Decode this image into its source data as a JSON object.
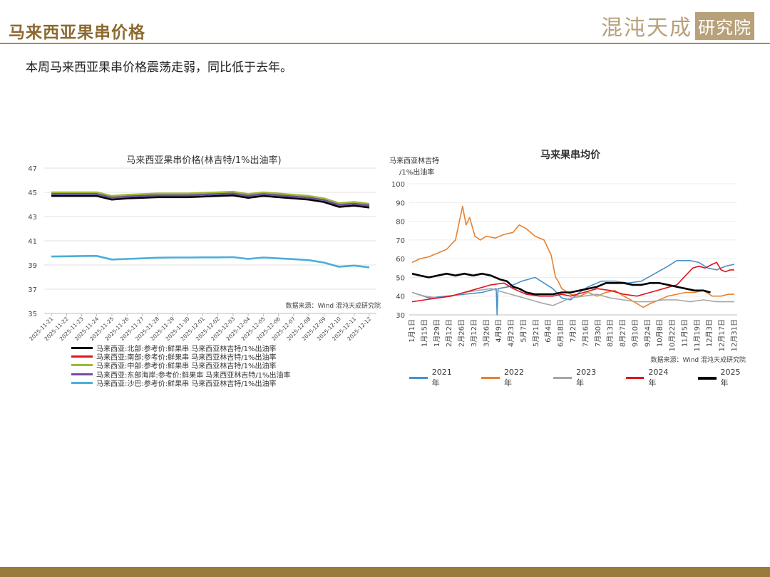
{
  "header": {
    "title": "马来西亚果串价格",
    "logo_main": "混沌天成",
    "logo_box": "研究院"
  },
  "subtitle": "本周马来西亚果串价格震荡走弱，同比低于去年。",
  "chart_data": [
    {
      "type": "line",
      "title": "马来西亚果串价格(林吉特/1%出油率)",
      "ylim": [
        35,
        47
      ],
      "yticks": [
        35,
        37,
        39,
        41,
        43,
        45,
        47
      ],
      "source": "数据来源：Wind 混沌天成研究院",
      "categories": [
        "2025-11-21",
        "2025-11-22",
        "2025-11-23",
        "2025-11-24",
        "2025-11-25",
        "2025-11-26",
        "2025-11-27",
        "2025-11-28",
        "2025-11-29",
        "2025-11-30",
        "2025-12-01",
        "2025-12-02",
        "2025-12-03",
        "2025-12-04",
        "2025-12-05",
        "2025-12-06",
        "2025-12-07",
        "2025-12-08",
        "2025-12-09",
        "2025-12-10",
        "2025-12-11",
        "2025-12-12"
      ],
      "series": [
        {
          "name": "马来西亚:北部:参考价:鲜果串 马来西亚林吉特/1%出油率",
          "color": "#000000",
          "values": [
            44.7,
            44.7,
            44.7,
            44.7,
            44.4,
            44.5,
            44.55,
            44.6,
            44.6,
            44.6,
            44.65,
            44.7,
            44.75,
            44.55,
            44.7,
            44.6,
            44.5,
            44.4,
            44.2,
            43.8,
            43.9,
            43.75
          ]
        },
        {
          "name": "马来西亚:南部:参考价:鲜果串 马来西亚林吉特/1%出油率",
          "color": "#e0141c",
          "values": [
            44.9,
            44.9,
            44.9,
            44.9,
            44.6,
            44.7,
            44.75,
            44.8,
            44.8,
            44.8,
            44.85,
            44.9,
            44.95,
            44.75,
            44.9,
            44.8,
            44.7,
            44.6,
            44.4,
            44.0,
            44.1,
            43.95
          ]
        },
        {
          "name": "马来西亚:中部:参考价:鲜果串 马来西亚林吉特/1%出油率",
          "color": "#9bbb33",
          "values": [
            45.0,
            45.0,
            45.0,
            45.0,
            44.7,
            44.8,
            44.85,
            44.9,
            44.9,
            44.9,
            44.95,
            45.0,
            45.05,
            44.85,
            45.0,
            44.9,
            44.8,
            44.7,
            44.5,
            44.1,
            44.2,
            44.05
          ]
        },
        {
          "name": "马来西亚:东部海岸:参考价:鲜果串 马来西亚林吉特/1%出油率",
          "color": "#6f4fa0",
          "values": [
            44.85,
            44.85,
            44.85,
            44.85,
            44.55,
            44.65,
            44.7,
            44.75,
            44.75,
            44.75,
            44.8,
            44.85,
            44.9,
            44.7,
            44.85,
            44.75,
            44.65,
            44.55,
            44.35,
            43.95,
            44.05,
            43.9
          ]
        },
        {
          "name": "马来西亚:沙巴:参考价:鲜果串 马来西亚林吉特/1%出油率",
          "color": "#4aaed8",
          "values": [
            39.7,
            39.72,
            39.74,
            39.75,
            39.45,
            39.5,
            39.55,
            39.6,
            39.62,
            39.62,
            39.63,
            39.63,
            39.65,
            39.5,
            39.62,
            39.55,
            39.48,
            39.4,
            39.2,
            38.85,
            38.95,
            38.8
          ]
        }
      ],
      "legend_order": [
        0,
        1,
        2,
        3,
        4
      ]
    },
    {
      "type": "line",
      "title": "马来果串均价",
      "ylabel": "马来西亚林吉特/1%出油率",
      "ylim": [
        30,
        100
      ],
      "yticks": [
        30,
        40,
        50,
        60,
        70,
        80,
        90,
        100
      ],
      "source": "数据来源：Wind 混沌天成研究院",
      "x_tick_labels": [
        "1月1日",
        "1月15日",
        "1月29日",
        "2月12日",
        "2月26日",
        "3月12日",
        "3月26日",
        "4月9日",
        "4月23日",
        "5月7日",
        "5月21日",
        "6月4日",
        "6月18日",
        "7月2日",
        "7月16日",
        "7月30日",
        "8月13日",
        "8月27日",
        "9月10日",
        "9月24日",
        "10月8日",
        "10月22日",
        "11月5日",
        "11月19日",
        "12月3日",
        "12月17日",
        "12月31日"
      ],
      "x_domain": [
        1,
        365
      ],
      "series": [
        {
          "name": "2021年",
          "color": "#4a90c8",
          "width": 1.6,
          "points": [
            [
              1,
              42
            ],
            [
              20,
              39
            ],
            [
              40,
              40
            ],
            [
              60,
              41
            ],
            [
              80,
              42
            ],
            [
              96,
              44
            ],
            [
              97,
              30
            ],
            [
              98,
              44
            ],
            [
              110,
              45
            ],
            [
              125,
              48
            ],
            [
              140,
              50
            ],
            [
              150,
              47
            ],
            [
              160,
              44
            ],
            [
              170,
              39
            ],
            [
              180,
              38
            ],
            [
              190,
              42
            ],
            [
              200,
              45
            ],
            [
              215,
              48
            ],
            [
              230,
              48
            ],
            [
              245,
              47
            ],
            [
              260,
              48
            ],
            [
              275,
              52
            ],
            [
              290,
              56
            ],
            [
              300,
              59
            ],
            [
              315,
              59
            ],
            [
              325,
              58
            ],
            [
              335,
              55
            ],
            [
              345,
              54
            ],
            [
              355,
              56
            ],
            [
              365,
              57
            ]
          ]
        },
        {
          "name": "2022年",
          "color": "#e8812f",
          "width": 1.6,
          "points": [
            [
              1,
              58
            ],
            [
              10,
              60
            ],
            [
              20,
              61
            ],
            [
              30,
              63
            ],
            [
              40,
              65
            ],
            [
              50,
              70
            ],
            [
              58,
              88
            ],
            [
              62,
              78
            ],
            [
              66,
              82
            ],
            [
              72,
              72
            ],
            [
              78,
              70
            ],
            [
              85,
              72
            ],
            [
              95,
              71
            ],
            [
              105,
              73
            ],
            [
              115,
              74
            ],
            [
              122,
              78
            ],
            [
              130,
              76
            ],
            [
              140,
              72
            ],
            [
              150,
              70
            ],
            [
              158,
              62
            ],
            [
              163,
              50
            ],
            [
              166,
              48
            ],
            [
              170,
              44
            ],
            [
              180,
              41
            ],
            [
              190,
              40
            ],
            [
              200,
              42
            ],
            [
              210,
              40
            ],
            [
              220,
              42
            ],
            [
              230,
              43
            ],
            [
              240,
              40
            ],
            [
              248,
              38
            ],
            [
              255,
              36
            ],
            [
              262,
              34
            ],
            [
              270,
              36
            ],
            [
              280,
              38
            ],
            [
              290,
              40
            ],
            [
              300,
              41
            ],
            [
              310,
              42
            ],
            [
              320,
              42
            ],
            [
              330,
              43
            ],
            [
              340,
              40
            ],
            [
              350,
              40
            ],
            [
              358,
              41
            ],
            [
              365,
              41
            ]
          ]
        },
        {
          "name": "2023年",
          "color": "#a6a6a6",
          "width": 1.6,
          "points": [
            [
              1,
              42
            ],
            [
              15,
              40
            ],
            [
              30,
              39
            ],
            [
              45,
              40
            ],
            [
              60,
              42
            ],
            [
              75,
              43
            ],
            [
              90,
              44
            ],
            [
              105,
              42
            ],
            [
              120,
              40
            ],
            [
              135,
              38
            ],
            [
              150,
              36
            ],
            [
              160,
              35
            ],
            [
              170,
              37
            ],
            [
              180,
              39
            ],
            [
              195,
              40
            ],
            [
              210,
              41
            ],
            [
              225,
              39
            ],
            [
              240,
              38
            ],
            [
              255,
              37
            ],
            [
              270,
              37
            ],
            [
              285,
              38
            ],
            [
              300,
              38
            ],
            [
              315,
              37
            ],
            [
              330,
              38
            ],
            [
              345,
              37
            ],
            [
              355,
              37
            ],
            [
              365,
              37
            ]
          ]
        },
        {
          "name": "2024年",
          "color": "#e0141c",
          "width": 1.6,
          "points": [
            [
              1,
              37
            ],
            [
              15,
              38
            ],
            [
              30,
              39
            ],
            [
              45,
              40
            ],
            [
              60,
              42
            ],
            [
              75,
              44
            ],
            [
              90,
              46
            ],
            [
              105,
              47
            ],
            [
              115,
              44
            ],
            [
              130,
              41
            ],
            [
              145,
              40
            ],
            [
              160,
              40
            ],
            [
              170,
              41
            ],
            [
              180,
              40
            ],
            [
              195,
              42
            ],
            [
              210,
              44
            ],
            [
              225,
              43
            ],
            [
              240,
              41
            ],
            [
              255,
              40
            ],
            [
              270,
              42
            ],
            [
              285,
              44
            ],
            [
              300,
              46
            ],
            [
              310,
              51
            ],
            [
              318,
              55
            ],
            [
              325,
              56
            ],
            [
              332,
              55
            ],
            [
              340,
              57
            ],
            [
              345,
              58
            ],
            [
              350,
              54
            ],
            [
              355,
              53
            ],
            [
              360,
              54
            ],
            [
              365,
              54
            ]
          ]
        },
        {
          "name": "2025年",
          "color": "#000000",
          "width": 2.6,
          "points": [
            [
              1,
              52
            ],
            [
              10,
              51
            ],
            [
              20,
              50
            ],
            [
              30,
              51
            ],
            [
              40,
              52
            ],
            [
              50,
              51
            ],
            [
              60,
              52
            ],
            [
              70,
              51
            ],
            [
              80,
              52
            ],
            [
              90,
              51
            ],
            [
              100,
              49
            ],
            [
              108,
              48
            ],
            [
              115,
              45
            ],
            [
              122,
              44
            ],
            [
              130,
              42
            ],
            [
              140,
              41
            ],
            [
              150,
              41
            ],
            [
              160,
              41
            ],
            [
              170,
              42
            ],
            [
              180,
              42
            ],
            [
              190,
              43
            ],
            [
              200,
              44
            ],
            [
              210,
              45
            ],
            [
              220,
              47
            ],
            [
              230,
              47
            ],
            [
              240,
              47
            ],
            [
              250,
              46
            ],
            [
              260,
              46
            ],
            [
              270,
              47
            ],
            [
              280,
              47
            ],
            [
              290,
              46
            ],
            [
              300,
              45
            ],
            [
              310,
              44
            ],
            [
              320,
              43
            ],
            [
              330,
              43
            ],
            [
              338,
              42
            ]
          ]
        }
      ]
    }
  ]
}
